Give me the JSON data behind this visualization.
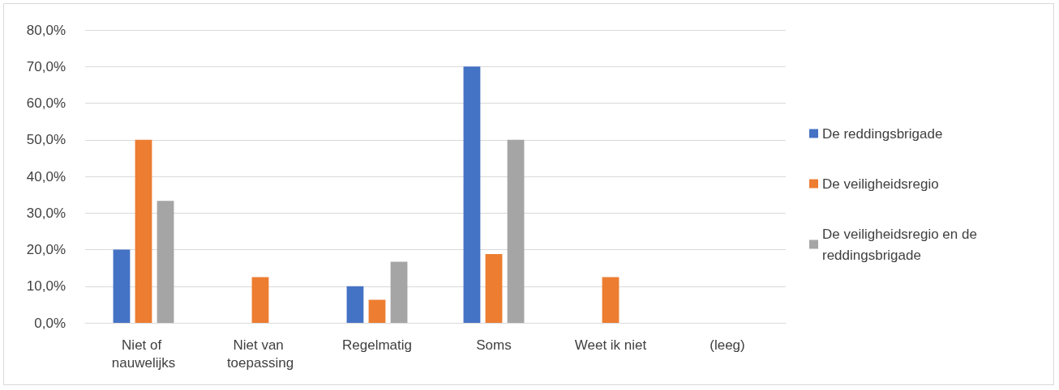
{
  "chart_data": {
    "type": "bar",
    "categories": [
      "Niet of nauwelijks",
      "Niet van toepassing",
      "Regelmatig",
      "Soms",
      "Weet ik niet",
      "(leeg)"
    ],
    "series": [
      {
        "name": "De reddingsbrigade",
        "color": "#4472c4",
        "values": [
          20,
          null,
          10,
          70,
          null,
          null
        ]
      },
      {
        "name": "De veiligheidsregio",
        "color": "#ed7d31",
        "values": [
          50,
          12.5,
          6.3,
          18.8,
          12.5,
          null
        ]
      },
      {
        "name": "De veiligheidsregio en de reddingsbrigade",
        "color": "#a5a5a5",
        "values": [
          33.3,
          null,
          16.7,
          50,
          null,
          null
        ]
      }
    ],
    "ylim": [
      0,
      80
    ],
    "yticks": [
      {
        "value": 0,
        "label": "0,0%"
      },
      {
        "value": 10,
        "label": "10,0%"
      },
      {
        "value": 20,
        "label": "20,0%"
      },
      {
        "value": 30,
        "label": "30,0%"
      },
      {
        "value": 40,
        "label": "40,0%"
      },
      {
        "value": 50,
        "label": "50,0%"
      },
      {
        "value": 60,
        "label": "60,0%"
      },
      {
        "value": 70,
        "label": "70,0%"
      },
      {
        "value": 80,
        "label": "80,0%"
      }
    ],
    "grid": "y",
    "legend": "right"
  }
}
